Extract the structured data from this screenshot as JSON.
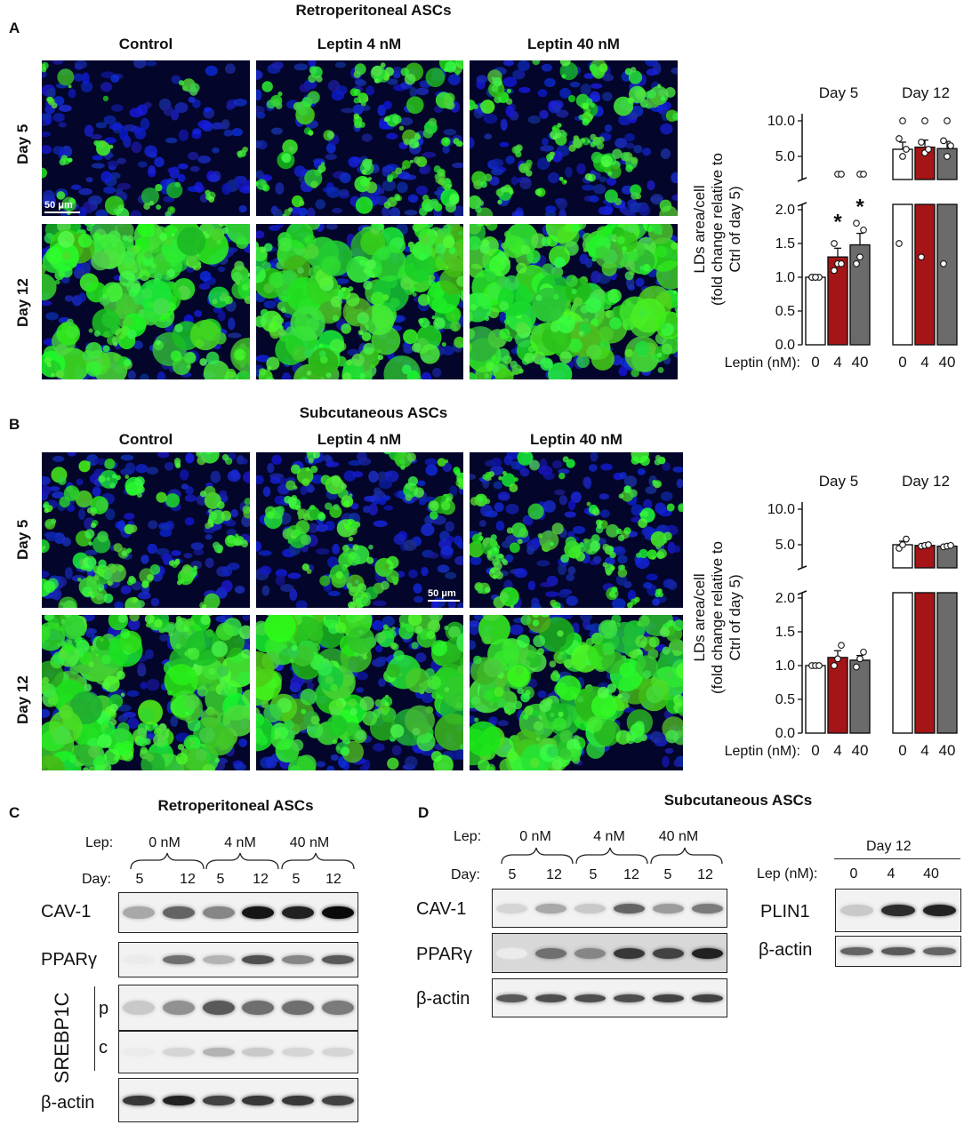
{
  "panelA": {
    "letter": "A",
    "title": "Retroperitoneal ASCs",
    "columns": [
      "Control",
      "Leptin 4 nM",
      "Leptin 40 nM"
    ],
    "rows": [
      "Day 5",
      "Day 12"
    ],
    "scale_bar": "50 μm"
  },
  "panelB": {
    "letter": "B",
    "title": "Subcutaneous ASCs",
    "columns": [
      "Control",
      "Leptin 4 nM",
      "Leptin 40 nM"
    ],
    "rows": [
      "Day 5",
      "Day 12"
    ],
    "scale_bar": "50 μm"
  },
  "chart_data": [
    {
      "type": "bar",
      "panel": "A",
      "ylabel_line1": "LDs area/cell",
      "ylabel_line2": "(fold change relative to",
      "ylabel_line3": "Ctrl of day 5)",
      "xlabel_prefix": "Leptin (nM):",
      "groups": [
        "Day 5",
        "Day 12"
      ],
      "categories": [
        "0",
        "4",
        "40"
      ],
      "yticks_lower": [
        "0.0",
        "0.5",
        "1.0",
        "1.5",
        "2.0"
      ],
      "yticks_upper": [
        "5.0",
        "10.0"
      ],
      "ylim_lower": [
        0,
        2
      ],
      "ylim_upper": [
        2.5,
        11
      ],
      "values": {
        "Day 5": [
          1.0,
          1.3,
          1.48
        ],
        "Day 12": [
          6.0,
          6.3,
          6.1
        ]
      },
      "errors": {
        "Day 5": [
          0.0,
          0.13,
          0.17
        ],
        "Day 12": [
          1.0,
          1.0,
          1.0
        ]
      },
      "points": {
        "Day 5": [
          [
            1.0,
            1.0,
            1.0,
            1.0,
            1.0
          ],
          [
            1.1,
            1.2,
            1.2,
            1.5,
            2.1,
            2.1
          ],
          [
            1.2,
            1.3,
            1.7,
            1.8,
            2.3,
            2.5
          ]
        ],
        "Day 12": [
          [
            1.5,
            5.0,
            6.0,
            7.5,
            10.0
          ],
          [
            1.3,
            5.5,
            6.0,
            7.0,
            10.0
          ],
          [
            1.2,
            5.0,
            6.5,
            7.2,
            10.0
          ]
        ]
      },
      "significance": {
        "Day 5": [
          "",
          "*",
          "*"
        ],
        "Day 12": [
          "",
          "",
          ""
        ]
      },
      "colors": {
        "0": "#ffffff",
        "4": "#a51416",
        "40": "#6b6b6b"
      }
    },
    {
      "type": "bar",
      "panel": "B",
      "ylabel_line1": "LDs area/cell",
      "ylabel_line2": "(fold change relative to",
      "ylabel_line3": "Ctrl of day 5)",
      "xlabel_prefix": "Leptin (nM):",
      "groups": [
        "Day 5",
        "Day 12"
      ],
      "categories": [
        "0",
        "4",
        "40"
      ],
      "yticks_lower": [
        "0.0",
        "0.5",
        "1.0",
        "1.5",
        "2.0"
      ],
      "yticks_upper": [
        "5.0",
        "10.0"
      ],
      "ylim_lower": [
        0,
        2
      ],
      "ylim_upper": [
        2.5,
        11
      ],
      "values": {
        "Day 5": [
          1.0,
          1.12,
          1.08
        ],
        "Day 12": [
          5.0,
          4.9,
          4.8
        ]
      },
      "errors": {
        "Day 5": [
          0.0,
          0.1,
          0.07
        ],
        "Day 12": [
          0.5,
          0.1,
          0.1
        ]
      },
      "points": {
        "Day 5": [
          [
            1.0,
            1.0,
            1.0
          ],
          [
            1.0,
            1.1,
            1.3
          ],
          [
            0.98,
            1.1,
            1.2
          ]
        ],
        "Day 12": [
          [
            4.5,
            5.0,
            5.8
          ],
          [
            4.8,
            4.9,
            5.0
          ],
          [
            4.7,
            4.8,
            4.9
          ]
        ]
      },
      "significance": {
        "Day 5": [
          "",
          "",
          ""
        ],
        "Day 12": [
          "",
          "",
          ""
        ]
      },
      "colors": {
        "0": "#ffffff",
        "4": "#a51416",
        "40": "#6b6b6b"
      }
    }
  ],
  "panelC": {
    "letter": "C",
    "title": "Retroperitoneal ASCs",
    "lep_label": "Lep:",
    "day_label": "Day:",
    "lep_groups": [
      "0 nM",
      "4 nM",
      "40 nM"
    ],
    "days": [
      "5",
      "12",
      "5",
      "12",
      "5",
      "12"
    ],
    "blots": [
      "CAV-1",
      "PPARγ",
      "p",
      "c",
      "β-actin"
    ],
    "srebp_label": "SREBP1C",
    "intensities": {
      "CAV-1": [
        0.3,
        0.6,
        0.45,
        0.95,
        0.9,
        1.0
      ],
      "PPARγ": [
        0.0,
        0.55,
        0.25,
        0.7,
        0.45,
        0.65
      ],
      "p": [
        0.15,
        0.4,
        0.65,
        0.55,
        0.55,
        0.5
      ],
      "c": [
        0.0,
        0.1,
        0.25,
        0.15,
        0.1,
        0.1
      ],
      "β-actin": [
        0.8,
        0.9,
        0.75,
        0.8,
        0.8,
        0.75
      ]
    }
  },
  "panelD": {
    "letter": "D",
    "title": "Subcutaneous ASCs",
    "lep_label": "Lep:",
    "day_label": "Day:",
    "lep_groups": [
      "0 nM",
      "4 nM",
      "40 nM"
    ],
    "days": [
      "5",
      "12",
      "5",
      "12",
      "5",
      "12"
    ],
    "blots": [
      "CAV-1",
      "PPARγ",
      "β-actin"
    ],
    "intensities": {
      "CAV-1": [
        0.1,
        0.3,
        0.15,
        0.6,
        0.35,
        0.5
      ],
      "PPARγ": [
        0.0,
        0.55,
        0.45,
        0.8,
        0.75,
        0.9
      ],
      "β-actin": [
        0.65,
        0.7,
        0.7,
        0.7,
        0.75,
        0.75
      ]
    },
    "right": {
      "day_header": "Day 12",
      "lep_label": "Lep (nM):",
      "lanes": [
        "0",
        "4",
        "40"
      ],
      "blots": [
        "PLIN1",
        "β-actin"
      ],
      "intensities": {
        "PLIN1": [
          0.15,
          0.85,
          0.9
        ],
        "β-actin": [
          0.6,
          0.65,
          0.6
        ]
      }
    }
  }
}
